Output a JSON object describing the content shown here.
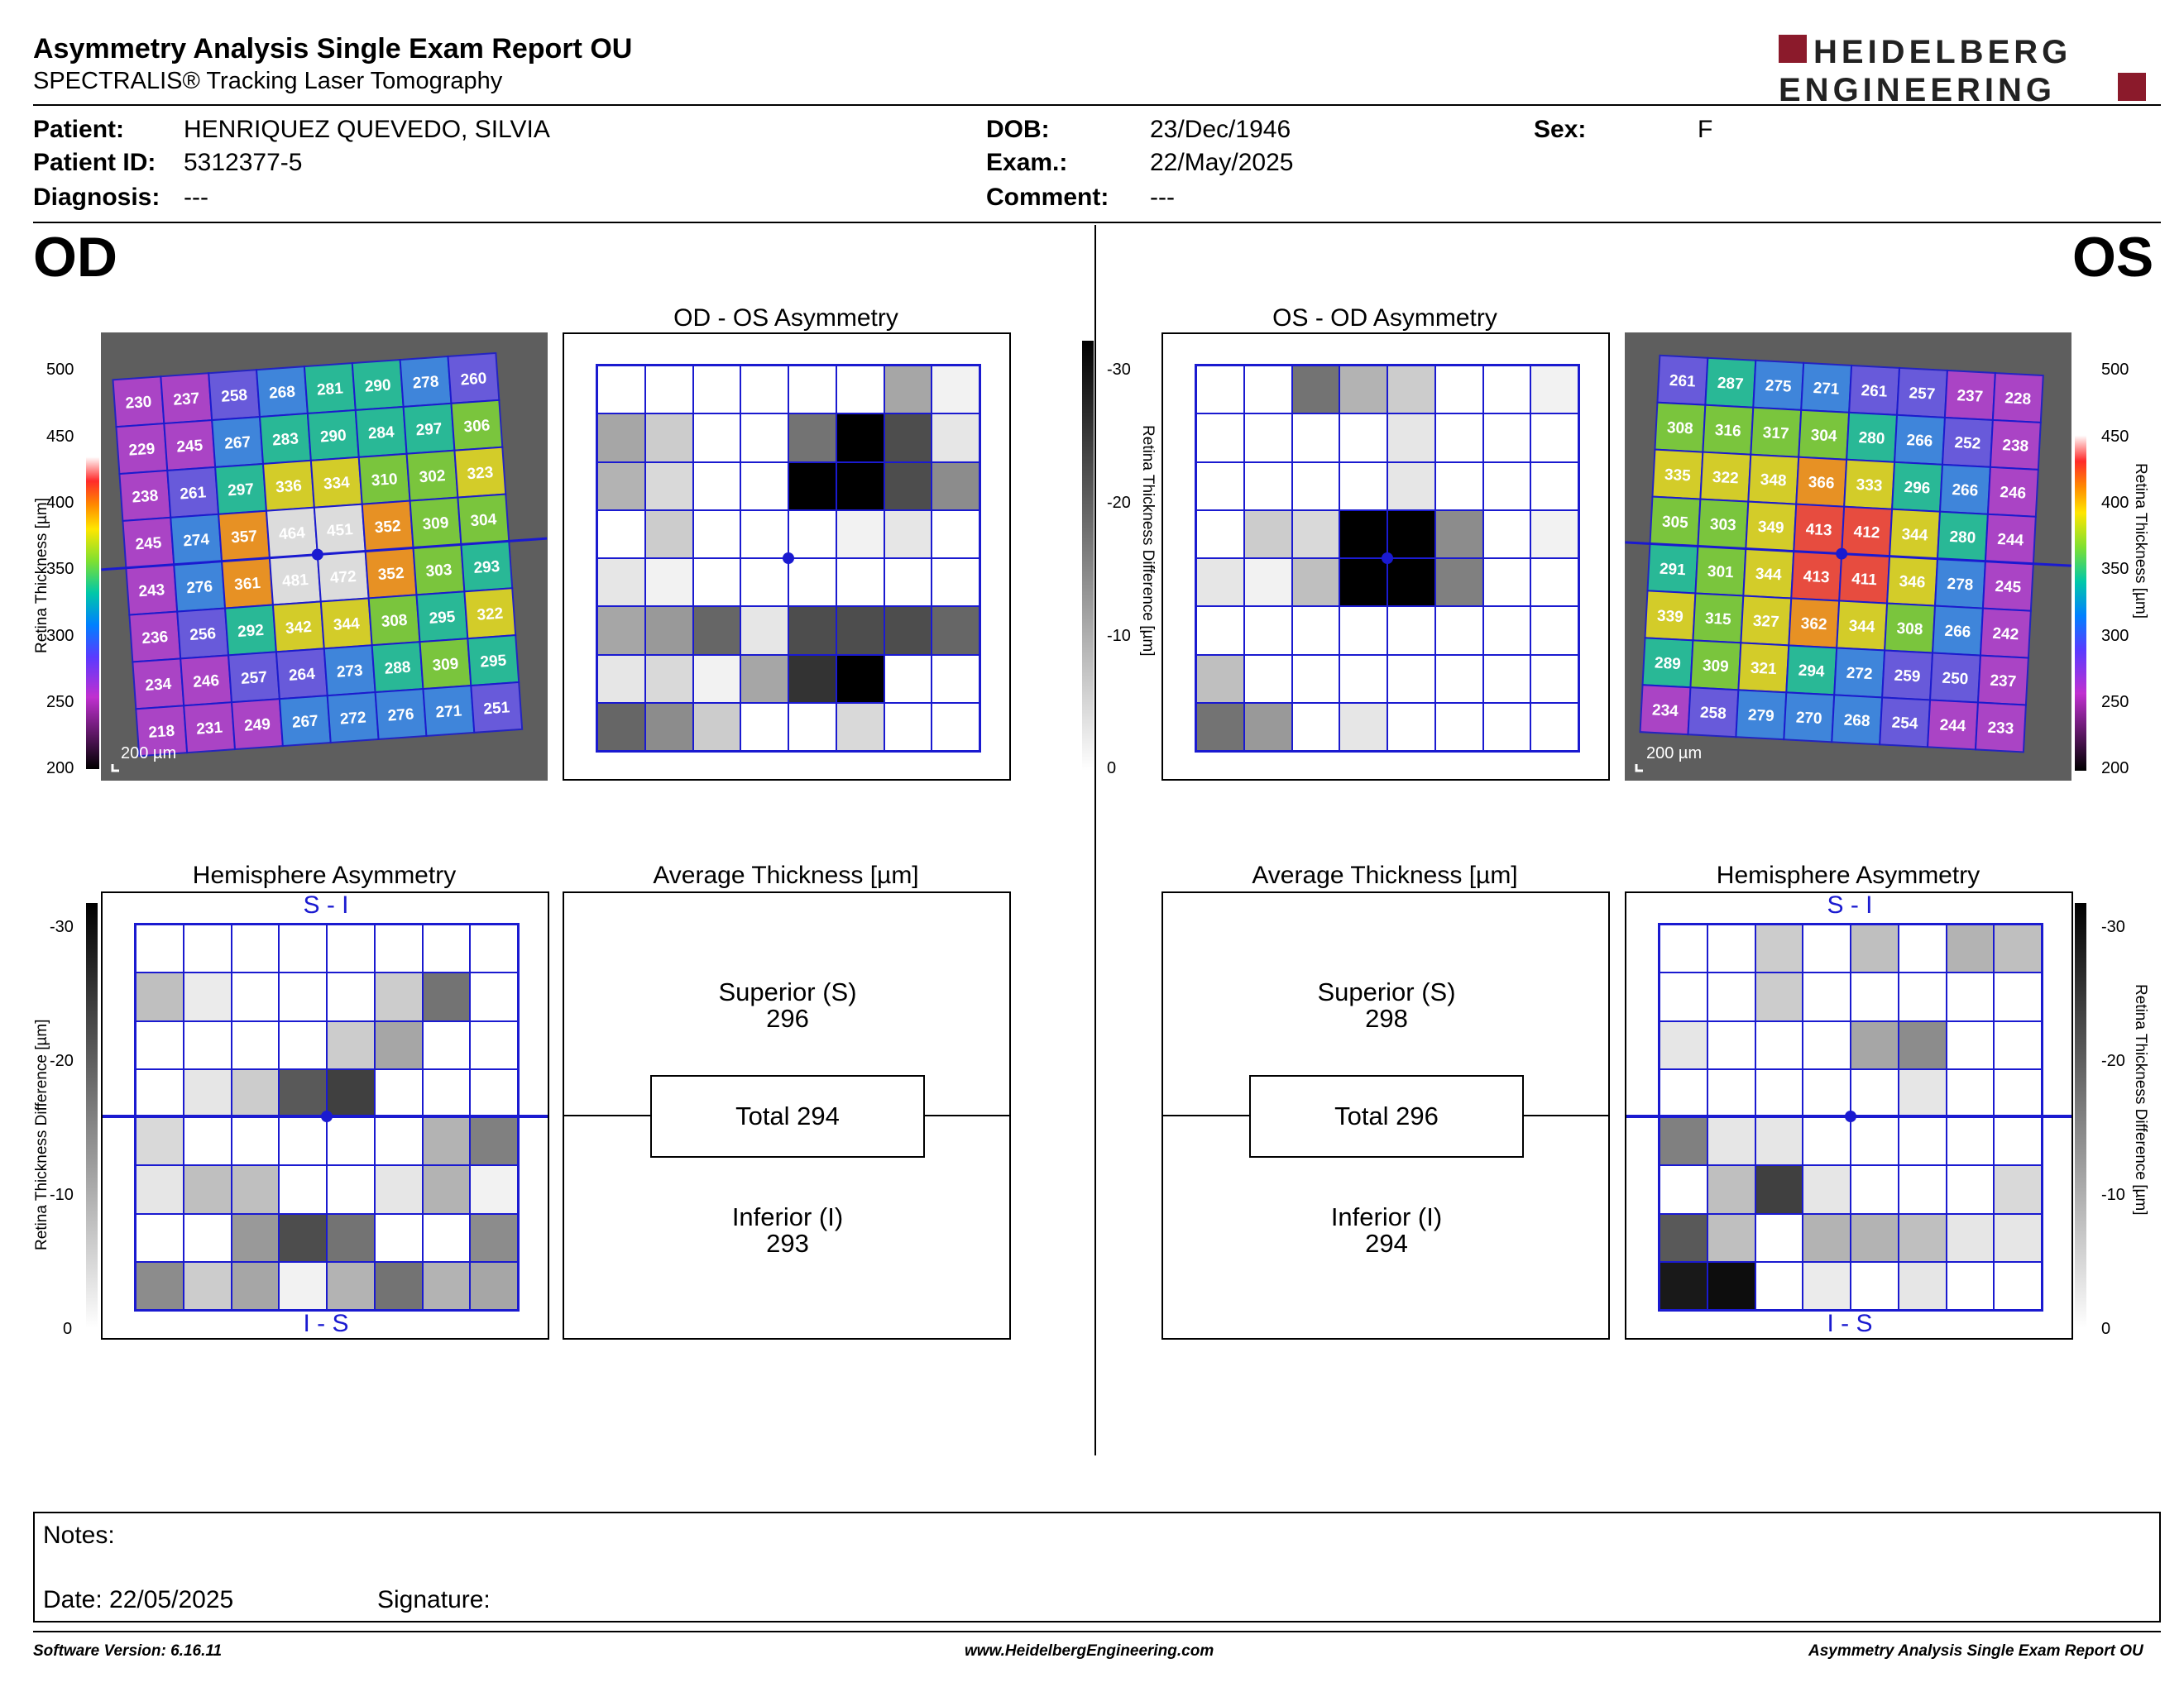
{
  "header": {
    "title": "Asymmetry Analysis Single Exam Report OU",
    "subtitle": "SPECTRALIS® Tracking Laser Tomography",
    "logo_line1": "HEIDELBERG",
    "logo_line2": "ENGINEERING"
  },
  "patient": {
    "patient_label": "Patient:",
    "patient_value": "HENRIQUEZ QUEVEDO, SILVIA",
    "id_label": "Patient ID:",
    "id_value": "5312377-5",
    "diag_label": "Diagnosis:",
    "diag_value": "---",
    "dob_label": "DOB:",
    "dob_value": "23/Dec/1946",
    "exam_label": "Exam.:",
    "exam_value": "22/May/2025",
    "comment_label": "Comment:",
    "comment_value": "---",
    "sex_label": "Sex:",
    "sex_value": "F"
  },
  "od": {
    "eye_label": "OD",
    "asym_title": "OD - OS Asymmetry",
    "hemi_title": "Hemisphere Asymmetry",
    "avg_title": "Average Thickness [µm]",
    "scale_label": "200 µm",
    "superior_label": "Superior (S)",
    "superior_value": "296",
    "total_label": "Total 294",
    "inferior_label": "Inferior (I)",
    "inferior_value": "293",
    "hemi_top": "S - I",
    "hemi_bottom": "I - S",
    "thickness_grid": [
      [
        230,
        237,
        258,
        268,
        281,
        290,
        278,
        260
      ],
      [
        229,
        245,
        267,
        283,
        290,
        284,
        297,
        306
      ],
      [
        238,
        261,
        297,
        336,
        334,
        310,
        302,
        323
      ],
      [
        245,
        274,
        357,
        464,
        451,
        352,
        309,
        304
      ],
      [
        243,
        276,
        361,
        481,
        472,
        352,
        303,
        293
      ],
      [
        236,
        256,
        292,
        342,
        344,
        308,
        295,
        322
      ],
      [
        234,
        246,
        257,
        264,
        273,
        288,
        309,
        295
      ],
      [
        218,
        231,
        249,
        267,
        272,
        276,
        271,
        251
      ]
    ],
    "asym_gray": [
      [
        0,
        0,
        0,
        0,
        0,
        0,
        0.35,
        0.05
      ],
      [
        0.35,
        0.2,
        0,
        0,
        0.55,
        1,
        0.7,
        0.1
      ],
      [
        0.3,
        0.15,
        0,
        0,
        1,
        1,
        0.7,
        0.45
      ],
      [
        0,
        0.2,
        0,
        0,
        0,
        0.05,
        0.1,
        0
      ],
      [
        0.1,
        0.05,
        0,
        0,
        0,
        0,
        0,
        0
      ],
      [
        0.35,
        0.4,
        0.6,
        0.1,
        0.7,
        0.7,
        0.7,
        0.6
      ],
      [
        0.1,
        0.15,
        0.05,
        0.35,
        0.8,
        1,
        0,
        0
      ],
      [
        0.6,
        0.45,
        0.2,
        0,
        0,
        0.15,
        0,
        0
      ]
    ],
    "hemi_gray": [
      [
        0,
        0,
        0,
        0,
        0,
        0,
        0,
        0
      ],
      [
        0.25,
        0.08,
        0,
        0,
        0,
        0.2,
        0.55,
        0
      ],
      [
        0,
        0,
        0,
        0,
        0.2,
        0.35,
        0,
        0
      ],
      [
        0,
        0.1,
        0.2,
        0.65,
        0.75,
        0,
        0,
        0
      ],
      [
        0.15,
        0,
        0,
        0,
        0,
        0,
        0.3,
        0.5
      ],
      [
        0.1,
        0.25,
        0.25,
        0,
        0,
        0.1,
        0.3,
        0.05
      ],
      [
        0,
        0,
        0.4,
        0.7,
        0.55,
        0,
        0,
        0.45
      ],
      [
        0.45,
        0.2,
        0.35,
        0.05,
        0.3,
        0.55,
        0.3,
        0.35
      ]
    ]
  },
  "os": {
    "eye_label": "OS",
    "asym_title": "OS - OD Asymmetry",
    "hemi_title": "Hemisphere Asymmetry",
    "avg_title": "Average Thickness [µm]",
    "scale_label": "200 µm",
    "superior_label": "Superior (S)",
    "superior_value": "298",
    "total_label": "Total 296",
    "inferior_label": "Inferior (I)",
    "inferior_value": "294",
    "hemi_top": "S - I",
    "hemi_bottom": "I - S",
    "thickness_grid": [
      [
        261,
        287,
        275,
        271,
        261,
        257,
        237,
        228
      ],
      [
        308,
        316,
        317,
        304,
        280,
        266,
        252,
        238
      ],
      [
        335,
        322,
        348,
        366,
        333,
        296,
        266,
        246
      ],
      [
        305,
        303,
        349,
        413,
        412,
        344,
        280,
        244
      ],
      [
        291,
        301,
        344,
        413,
        411,
        346,
        278,
        245
      ],
      [
        339,
        315,
        327,
        362,
        344,
        308,
        266,
        242
      ],
      [
        289,
        309,
        321,
        294,
        272,
        259,
        250,
        237
      ],
      [
        234,
        258,
        279,
        270,
        268,
        254,
        244,
        233
      ]
    ],
    "asym_gray": [
      [
        0,
        0,
        0.55,
        0.3,
        0.2,
        0,
        0,
        0.05
      ],
      [
        0,
        0,
        0,
        0,
        0.1,
        0,
        0,
        0
      ],
      [
        0,
        0,
        0,
        0,
        0.1,
        0,
        0,
        0
      ],
      [
        0,
        0.2,
        0.15,
        1,
        1,
        0.45,
        0,
        0.05
      ],
      [
        0.1,
        0.05,
        0.25,
        1,
        1,
        0.5,
        0,
        0
      ],
      [
        0,
        0,
        0,
        0,
        0,
        0,
        0,
        0
      ],
      [
        0.25,
        0,
        0,
        0,
        0,
        0,
        0,
        0
      ],
      [
        0.55,
        0.4,
        0,
        0.1,
        0,
        0,
        0,
        0
      ]
    ],
    "hemi_gray": [
      [
        0,
        0,
        0.2,
        0,
        0.25,
        0,
        0.3,
        0.25
      ],
      [
        0,
        0,
        0.2,
        0,
        0,
        0,
        0,
        0
      ],
      [
        0.1,
        0,
        0,
        0,
        0.35,
        0.45,
        0,
        0
      ],
      [
        0,
        0,
        0,
        0,
        0,
        0.1,
        0,
        0
      ],
      [
        0.5,
        0.1,
        0.1,
        0,
        0,
        0,
        0,
        0
      ],
      [
        0,
        0.25,
        0.75,
        0.1,
        0,
        0,
        0,
        0.15
      ],
      [
        0.65,
        0.25,
        0,
        0.3,
        0.3,
        0.25,
        0.1,
        0.1
      ],
      [
        0.9,
        0.95,
        0,
        0.08,
        0,
        0.1,
        0,
        0
      ]
    ]
  },
  "thickness_scale": {
    "ticks": [
      "500",
      "450",
      "400",
      "350",
      "300",
      "250",
      "200"
    ],
    "label": "Retina Thickness [µm]"
  },
  "diff_scale": {
    "ticks": [
      "-30",
      "-20",
      "-10",
      "0"
    ],
    "label": "Retina Thickness Difference [µm]"
  },
  "notes": {
    "notes_label": "Notes:",
    "date_label": "Date: 22/05/2025",
    "signature_label": "Signature:"
  },
  "footer": {
    "left": "Software Version: 6.16.11",
    "center": "www.HeidelbergEngineering.com",
    "right": "Asymmetry Analysis Single Exam Report OU"
  },
  "colors": {
    "grid_blue": "#1a1ad0",
    "logo_red": "#8b1a2b"
  }
}
